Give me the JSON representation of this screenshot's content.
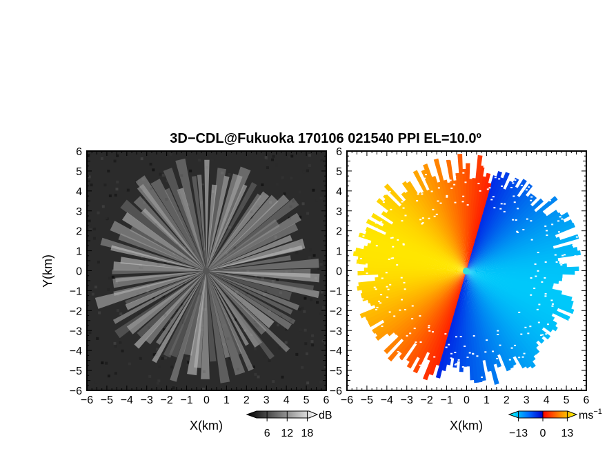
{
  "title": "3D−CDL@Fukuoka 170106 021540 PPI EL=10.0º",
  "chart_data": [
    {
      "type": "heatmap",
      "field": "reflectivity (PPI)",
      "xlabel": "X(km)",
      "ylabel": "Y(km)",
      "xlim": [
        -6,
        6
      ],
      "ylim": [
        -6,
        6
      ],
      "xticks": [
        "−6",
        "−5",
        "−4",
        "−3",
        "−2",
        "−1",
        "0",
        "1",
        "2",
        "3",
        "4",
        "5",
        "6"
      ],
      "yticks": [
        "6",
        "5",
        "4",
        "3",
        "2",
        "1",
        "0",
        "−1",
        "−2",
        "−3",
        "−4",
        "−5",
        "−6"
      ],
      "grid": false,
      "colorbar": {
        "unit": "dB",
        "tick_labels": [
          "6",
          "12",
          "18"
        ],
        "ticks": [
          6,
          12,
          18
        ],
        "range": [
          0,
          21
        ],
        "colors": [
          "#000000",
          "#ffffff"
        ]
      }
    },
    {
      "type": "heatmap",
      "field": "Doppler velocity (PPI)",
      "xlabel": "X(km)",
      "ylabel": "",
      "xlim": [
        -6,
        6
      ],
      "ylim": [
        -6,
        6
      ],
      "xticks": [
        "−6",
        "−5",
        "−4",
        "−3",
        "−2",
        "−1",
        "0",
        "1",
        "2",
        "3",
        "4",
        "5",
        "6"
      ],
      "yticks": [
        "6",
        "5",
        "4",
        "3",
        "2",
        "1",
        "0",
        "−1",
        "−2",
        "−3",
        "−4",
        "−5",
        "−6"
      ],
      "grid": false,
      "colorbar": {
        "unit": "ms",
        "unit_exponent": "−1",
        "tick_labels": [
          "−13",
          "0",
          "13"
        ],
        "ticks": [
          -13,
          0,
          13
        ],
        "range": [
          -18,
          18
        ],
        "colors": [
          "#00ffff",
          "#0066ff",
          "#0000cc",
          "#ff0000",
          "#ff8800",
          "#ffff00"
        ]
      }
    }
  ]
}
